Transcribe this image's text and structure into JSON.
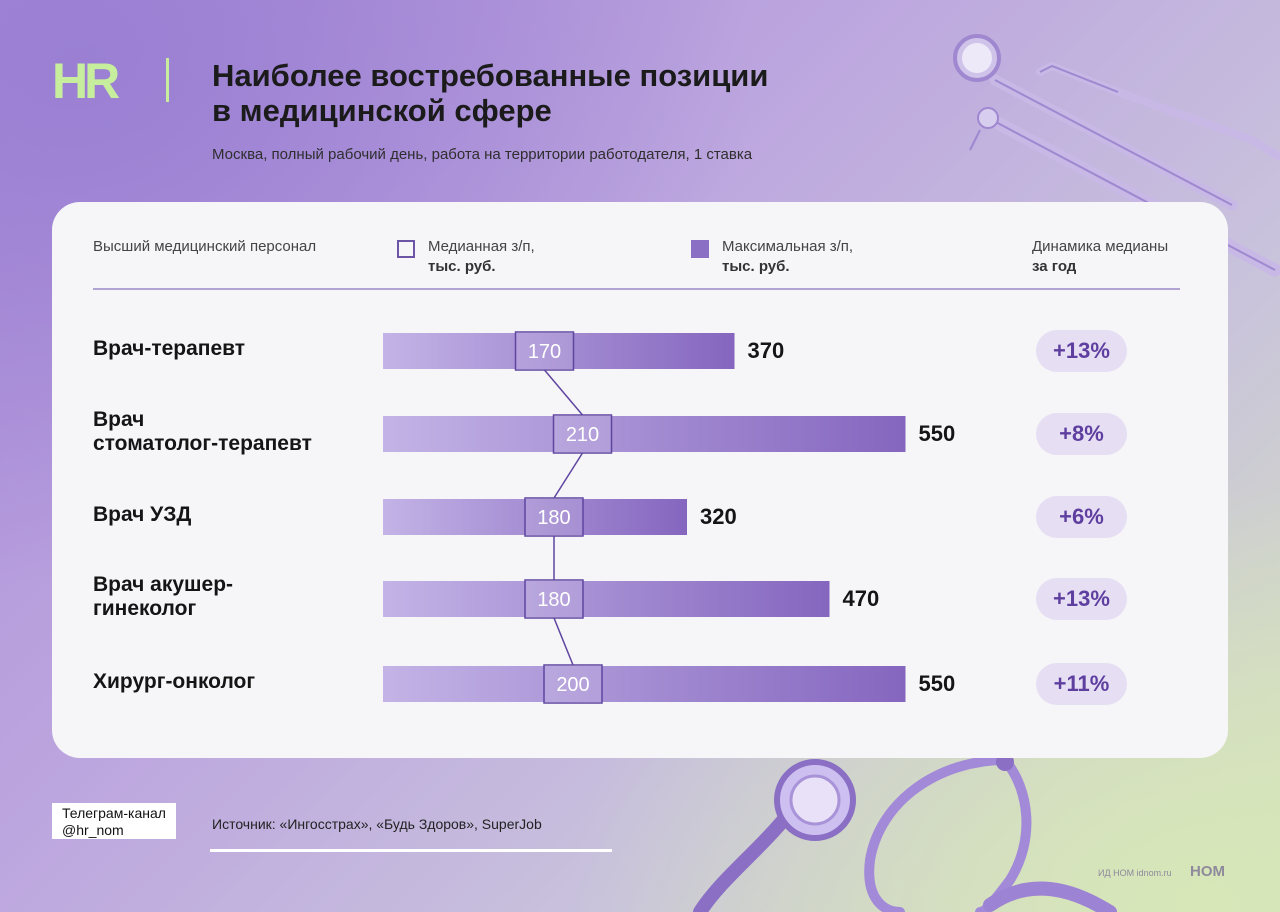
{
  "logo": "HR",
  "title_line1": "Наиболее востребованные позиции",
  "title_line2": "в медицинской сфере",
  "subtitle": "Москва, полный рабочий день, работа на территории работодателя, 1 ставка",
  "headers": {
    "category": "Высший медицинский персонал",
    "median_line1": "Медианная з/п,",
    "median_line2": "тыс. руб.",
    "max_line1": "Максимальная з/п,",
    "max_line2": "тыс. руб.",
    "dynamics_line1": "Динамика медианы",
    "dynamics_line2": "за год"
  },
  "chart_data": {
    "type": "bar",
    "categories": [
      "Врач-терапевт",
      "Врач стоматолог-терапевт",
      "Врач УЗД",
      "Врач акушер-гинеколог",
      "Хирург-онколог"
    ],
    "category_lines": [
      [
        "Врач-терапевт"
      ],
      [
        "Врач",
        "стоматолог-терапевт"
      ],
      [
        "Врач УЗД"
      ],
      [
        "Врач акушер-",
        "гинеколог"
      ],
      [
        "Хирург-онколог"
      ]
    ],
    "series": [
      {
        "name": "Медианная з/п, тыс. руб.",
        "values": [
          170,
          210,
          180,
          180,
          200
        ]
      },
      {
        "name": "Максимальная з/п, тыс. руб.",
        "values": [
          370,
          550,
          320,
          470,
          550
        ]
      }
    ],
    "dynamics": [
      "+13%",
      "+8%",
      "+6%",
      "+13%",
      "+11%"
    ],
    "colors": {
      "bar_light": "#c3b3e6",
      "bar_dark": "#8566bf",
      "median_border": "#5e45a0",
      "connector": "#5e45a0"
    }
  },
  "tag": {
    "line1": "Телеграм-канал",
    "line2": "@hr_nom"
  },
  "source": "Источник: «Ингосстрах», «Будь Здоров», SuperJob",
  "footer": {
    "small": "ИД НОМ idnom.ru",
    "logo": "НОМ"
  }
}
